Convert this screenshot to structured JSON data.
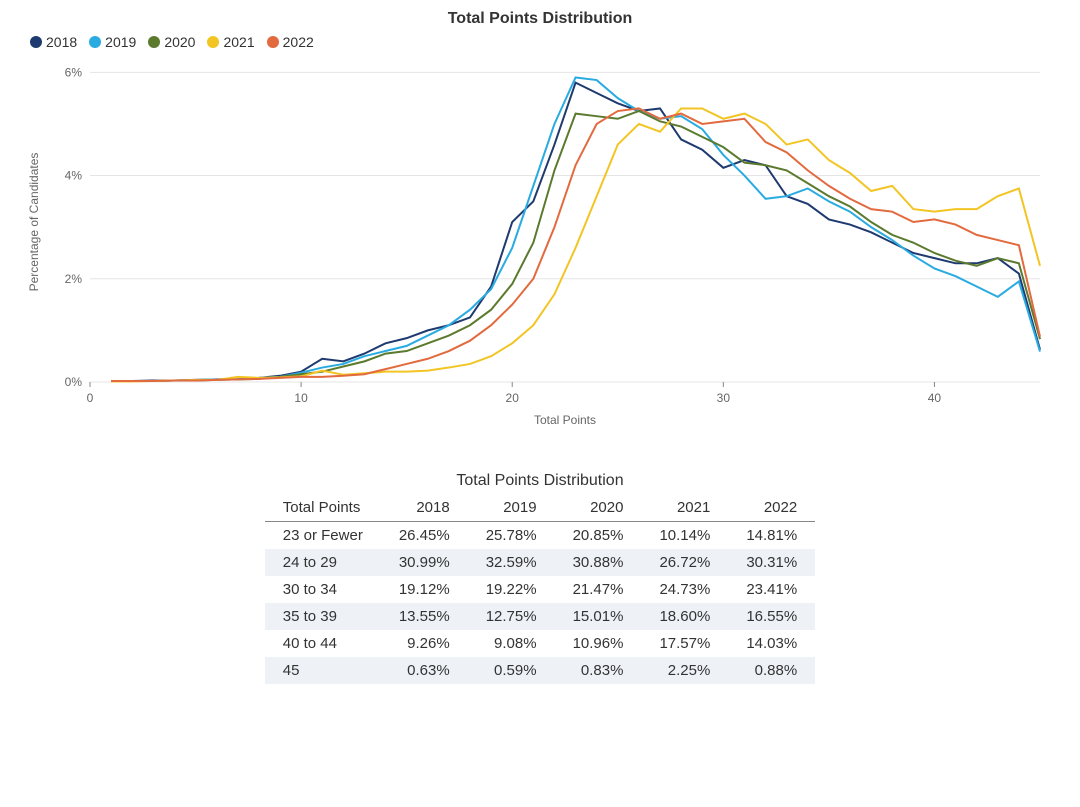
{
  "chart": {
    "title": "Total Points Distribution",
    "type": "line",
    "x_label": "Total Points",
    "y_label": "Percentage of Candidates",
    "background_color": "#ffffff",
    "grid_color": "#e5e5e5",
    "axis_color": "#888888",
    "title_fontsize": 16,
    "label_fontsize": 12,
    "tick_fontsize": 12,
    "line_width": 2,
    "xlim": [
      0,
      45
    ],
    "ylim": [
      0,
      6.2
    ],
    "xticks": [
      0,
      10,
      20,
      30,
      40
    ],
    "yticks": [
      0,
      2,
      4,
      6
    ],
    "ytick_labels": [
      "0%",
      "2%",
      "4%",
      "6%"
    ],
    "x": [
      1,
      2,
      3,
      4,
      5,
      6,
      7,
      8,
      9,
      10,
      11,
      12,
      13,
      14,
      15,
      16,
      17,
      18,
      19,
      20,
      21,
      22,
      23,
      24,
      25,
      26,
      27,
      28,
      29,
      30,
      31,
      32,
      33,
      34,
      35,
      36,
      37,
      38,
      39,
      40,
      41,
      42,
      43,
      44,
      45
    ],
    "series": [
      {
        "name": "2018",
        "color": "#1f3a6f",
        "y": [
          0.02,
          0.02,
          0.03,
          0.03,
          0.04,
          0.05,
          0.05,
          0.08,
          0.12,
          0.2,
          0.45,
          0.4,
          0.55,
          0.75,
          0.85,
          1.0,
          1.1,
          1.25,
          1.85,
          3.1,
          3.5,
          4.6,
          5.8,
          5.6,
          5.4,
          5.25,
          5.3,
          4.7,
          4.5,
          4.15,
          4.3,
          4.2,
          3.6,
          3.45,
          3.15,
          3.05,
          2.9,
          2.7,
          2.5,
          2.4,
          2.3,
          2.3,
          2.4,
          2.1,
          0.63
        ]
      },
      {
        "name": "2019",
        "color": "#29abe2",
        "y": [
          0.02,
          0.02,
          0.02,
          0.03,
          0.04,
          0.05,
          0.05,
          0.08,
          0.1,
          0.18,
          0.28,
          0.35,
          0.5,
          0.6,
          0.7,
          0.9,
          1.1,
          1.4,
          1.8,
          2.6,
          3.8,
          5.0,
          5.9,
          5.85,
          5.5,
          5.25,
          5.1,
          5.15,
          4.9,
          4.4,
          4.0,
          3.55,
          3.6,
          3.75,
          3.5,
          3.3,
          3.0,
          2.75,
          2.45,
          2.2,
          2.05,
          1.85,
          1.65,
          1.95,
          0.59
        ]
      },
      {
        "name": "2020",
        "color": "#5b7a2e",
        "y": [
          0.02,
          0.02,
          0.02,
          0.03,
          0.03,
          0.04,
          0.05,
          0.06,
          0.1,
          0.15,
          0.2,
          0.3,
          0.4,
          0.55,
          0.6,
          0.75,
          0.9,
          1.1,
          1.4,
          1.9,
          2.7,
          4.1,
          5.2,
          5.15,
          5.1,
          5.25,
          5.05,
          4.95,
          4.75,
          4.55,
          4.25,
          4.2,
          4.1,
          3.85,
          3.6,
          3.4,
          3.1,
          2.85,
          2.7,
          2.5,
          2.35,
          2.25,
          2.4,
          2.3,
          0.83
        ]
      },
      {
        "name": "2021",
        "color": "#f2c524",
        "y": [
          0.01,
          0.01,
          0.02,
          0.03,
          0.04,
          0.04,
          0.1,
          0.08,
          0.09,
          0.11,
          0.22,
          0.14,
          0.17,
          0.2,
          0.2,
          0.22,
          0.28,
          0.35,
          0.5,
          0.75,
          1.1,
          1.7,
          2.6,
          3.6,
          4.6,
          5.0,
          4.85,
          5.3,
          5.3,
          5.1,
          5.2,
          5.0,
          4.6,
          4.7,
          4.3,
          4.05,
          3.7,
          3.8,
          3.35,
          3.3,
          3.35,
          3.35,
          3.6,
          3.75,
          2.25
        ]
      },
      {
        "name": "2022",
        "color": "#e26a3e",
        "y": [
          0.02,
          0.02,
          0.02,
          0.03,
          0.03,
          0.04,
          0.05,
          0.06,
          0.08,
          0.1,
          0.1,
          0.12,
          0.15,
          0.25,
          0.35,
          0.45,
          0.6,
          0.8,
          1.1,
          1.5,
          2.0,
          3.0,
          4.2,
          5.0,
          5.25,
          5.3,
          5.1,
          5.2,
          5.0,
          5.05,
          5.1,
          4.65,
          4.45,
          4.1,
          3.8,
          3.55,
          3.35,
          3.3,
          3.1,
          3.15,
          3.05,
          2.85,
          2.75,
          2.65,
          0.88
        ]
      }
    ]
  },
  "table": {
    "title": "Total Points Distribution",
    "header_border_color": "#888888",
    "alt_row_color": "#eef2f7",
    "fontsize": 15,
    "columns": [
      "Total Points",
      "2018",
      "2019",
      "2020",
      "2021",
      "2022"
    ],
    "rows": [
      [
        "23 or Fewer",
        "26.45%",
        "25.78%",
        "20.85%",
        "10.14%",
        "14.81%"
      ],
      [
        "24 to 29",
        "30.99%",
        "32.59%",
        "30.88%",
        "26.72%",
        "30.31%"
      ],
      [
        "30 to 34",
        "19.12%",
        "19.22%",
        "21.47%",
        "24.73%",
        "23.41%"
      ],
      [
        "35 to 39",
        "13.55%",
        "12.75%",
        "15.01%",
        "18.60%",
        "16.55%"
      ],
      [
        "40 to 44",
        "9.26%",
        "9.08%",
        "10.96%",
        "17.57%",
        "14.03%"
      ],
      [
        "45",
        "0.63%",
        "0.59%",
        "0.83%",
        "2.25%",
        "0.88%"
      ]
    ]
  }
}
